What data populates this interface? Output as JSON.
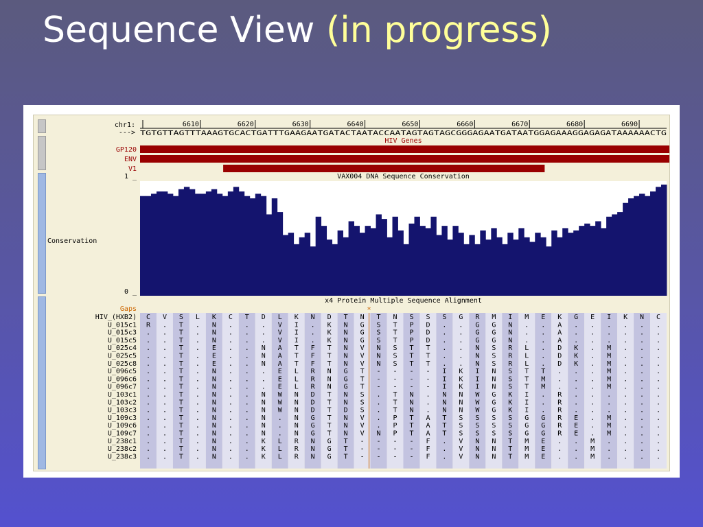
{
  "slide": {
    "title_main": "Sequence View",
    "title_accent": "(in progress)"
  },
  "colors": {
    "background_top": "#5b5a7e",
    "background_bottom": "#5451cf",
    "title_accent": "#ffff99",
    "browser_bg": "#f4f0da",
    "gene_track": "#990000",
    "conservation_fill": "#14146e",
    "gaps_label": "#cc6600",
    "alignment_even": "#c3c3e0",
    "alignment_odd": "#e2e2f0",
    "grid_line": "#d8d8ec"
  },
  "ruler": {
    "chrom_label": "chr1:",
    "strand_label": "--->",
    "positions": [
      "6610",
      "6620",
      "6630",
      "6640",
      "6650",
      "6660",
      "6670",
      "6680",
      "6690"
    ],
    "dna_sequence": "TGTGTTAGTTTAAAGTGCACTGATTTGAAGAATGATACTAATACCAATAGTAGTAGCGGGAGAATGATAATGGAGAAAGGAGAGATAAAAAACTG"
  },
  "gene_tracks": {
    "group_title": "HIV Genes",
    "tracks": [
      {
        "label": "GP120",
        "start_base": 0,
        "end_base": 95
      },
      {
        "label": "ENV",
        "start_base": 0,
        "end_base": 95
      },
      {
        "label": "V1",
        "start_base": 15,
        "end_base": 72
      }
    ]
  },
  "conservation": {
    "title": "VAX004 DNA Sequence Conservation",
    "side_label": "Conservation",
    "y_max_label": "1 _",
    "y_min_label": "0 _",
    "values": [
      0.87,
      0.87,
      0.89,
      0.91,
      0.91,
      0.89,
      0.87,
      0.93,
      0.95,
      0.93,
      0.89,
      0.89,
      0.91,
      0.93,
      0.89,
      0.87,
      0.91,
      0.95,
      0.91,
      0.87,
      0.85,
      0.89,
      0.87,
      0.71,
      0.85,
      0.73,
      0.53,
      0.55,
      0.45,
      0.51,
      0.55,
      0.43,
      0.69,
      0.61,
      0.49,
      0.45,
      0.57,
      0.51,
      0.65,
      0.61,
      0.55,
      0.61,
      0.59,
      0.71,
      0.67,
      0.51,
      0.69,
      0.57,
      0.45,
      0.63,
      0.69,
      0.61,
      0.59,
      0.69,
      0.53,
      0.61,
      0.49,
      0.61,
      0.55,
      0.45,
      0.53,
      0.45,
      0.57,
      0.49,
      0.59,
      0.51,
      0.45,
      0.55,
      0.49,
      0.59,
      0.51,
      0.47,
      0.55,
      0.51,
      0.43,
      0.57,
      0.51,
      0.59,
      0.55,
      0.57,
      0.61,
      0.63,
      0.61,
      0.65,
      0.59,
      0.69,
      0.71,
      0.73,
      0.81,
      0.85,
      0.87,
      0.89,
      0.87,
      0.91,
      0.95,
      0.97
    ]
  },
  "alignment": {
    "title": "x4 Protein Multiple Sequence Alignment",
    "gaps_label": "Gaps",
    "gap_marker": "*",
    "reference": {
      "name": "HIV_(HXB2)",
      "residues": [
        "C",
        "V",
        "S",
        "L",
        "K",
        "C",
        "T",
        "D",
        "L",
        "K",
        "N",
        "D",
        "T",
        "N",
        "T",
        "N",
        "S",
        "S",
        "S",
        "G",
        "R",
        "M",
        "I",
        "M",
        "E",
        "K",
        "G",
        "E",
        "I",
        "K",
        "N",
        "C"
      ]
    },
    "rows": [
      {
        "name": "U_015c1",
        "residues": [
          "R",
          ".",
          "T",
          ".",
          "N",
          ".",
          ".",
          ".",
          "V",
          "I",
          ".",
          "K",
          "N",
          "G",
          "S",
          "T",
          "P",
          "D",
          ".",
          ".",
          "G",
          "G",
          "N",
          ".",
          ".",
          "A",
          ".",
          ".",
          ".",
          ".",
          ".",
          "."
        ]
      },
      {
        "name": "U_015c3",
        "residues": [
          ".",
          ".",
          "T",
          ".",
          "N",
          ".",
          ".",
          ".",
          "V",
          "I",
          ".",
          "K",
          "N",
          "G",
          "S",
          "T",
          "P",
          "D",
          ".",
          ".",
          "G",
          "G",
          "N",
          ".",
          ".",
          "A",
          ".",
          ".",
          ".",
          ".",
          ".",
          "."
        ]
      },
      {
        "name": "U_015c5",
        "residues": [
          ".",
          ".",
          "T",
          ".",
          "N",
          ".",
          ".",
          ".",
          "V",
          "I",
          ".",
          "K",
          "N",
          "G",
          "S",
          "T",
          "P",
          "D",
          ".",
          ".",
          "G",
          "G",
          "N",
          ".",
          ".",
          "A",
          ".",
          ".",
          ".",
          ".",
          ".",
          "."
        ]
      },
      {
        "name": "U_025c4",
        "residues": [
          ".",
          ".",
          "T",
          ".",
          "E",
          ".",
          ".",
          "N",
          "A",
          "T",
          "F",
          "T",
          "N",
          "V",
          "N",
          "S",
          "T",
          "T",
          ".",
          ".",
          "N",
          "S",
          "R",
          "L",
          ".",
          "D",
          "K",
          ".",
          "M",
          ".",
          ".",
          "."
        ]
      },
      {
        "name": "U_025c5",
        "residues": [
          ".",
          ".",
          "T",
          ".",
          "E",
          ".",
          ".",
          "N",
          "A",
          "T",
          "F",
          "T",
          "N",
          "V",
          "N",
          "S",
          "T",
          "T",
          ".",
          ".",
          "N",
          "S",
          "R",
          "L",
          ".",
          "D",
          "K",
          ".",
          "M",
          ".",
          ".",
          "."
        ]
      },
      {
        "name": "U_025c8",
        "residues": [
          ".",
          ".",
          "T",
          ".",
          "E",
          ".",
          ".",
          "N",
          "A",
          "T",
          "F",
          "T",
          "N",
          "V",
          "N",
          "S",
          "T",
          "T",
          ".",
          ".",
          "N",
          "S",
          "R",
          "L",
          ".",
          "D",
          "K",
          ".",
          "M",
          ".",
          ".",
          "."
        ]
      },
      {
        "name": "U_096c5",
        "residues": [
          ".",
          ".",
          "T",
          ".",
          "N",
          ".",
          ".",
          ".",
          "E",
          "L",
          "R",
          "N",
          "G",
          "T",
          "-",
          "-",
          "-",
          "-",
          "I",
          "K",
          "I",
          "N",
          "S",
          "T",
          "T",
          ".",
          ".",
          ".",
          "M",
          ".",
          ".",
          "."
        ]
      },
      {
        "name": "U_096c6",
        "residues": [
          ".",
          ".",
          "T",
          ".",
          "N",
          ".",
          ".",
          ".",
          "E",
          "L",
          "R",
          "N",
          "G",
          "T",
          "-",
          "-",
          "-",
          "-",
          "I",
          "K",
          "I",
          "N",
          "S",
          "T",
          "M",
          ".",
          ".",
          ".",
          "M",
          ".",
          ".",
          "."
        ]
      },
      {
        "name": "U_096c7",
        "residues": [
          ".",
          ".",
          "T",
          ".",
          "N",
          ".",
          ".",
          ".",
          "E",
          "L",
          "R",
          "N",
          "G",
          "T",
          "-",
          "-",
          "-",
          "-",
          "I",
          "K",
          "I",
          "N",
          "S",
          "T",
          "M",
          ".",
          ".",
          ".",
          "M",
          ".",
          ".",
          "."
        ]
      },
      {
        "name": "U_103c1",
        "residues": [
          ".",
          ".",
          "T",
          ".",
          "N",
          ".",
          ".",
          "N",
          "W",
          "N",
          "D",
          "T",
          "N",
          "S",
          ".",
          "T",
          "N",
          ".",
          "N",
          "N",
          "W",
          "G",
          "K",
          "I",
          ".",
          "R",
          ".",
          ".",
          ".",
          ".",
          ".",
          "."
        ]
      },
      {
        "name": "U_103c2",
        "residues": [
          ".",
          ".",
          "T",
          ".",
          "N",
          ".",
          ".",
          "N",
          "W",
          "N",
          "D",
          "T",
          "N",
          "S",
          ".",
          "T",
          "N",
          ".",
          "N",
          "N",
          "W",
          "G",
          "K",
          "I",
          ".",
          "R",
          ".",
          ".",
          ".",
          ".",
          ".",
          "."
        ]
      },
      {
        "name": "U_103c3",
        "residues": [
          ".",
          ".",
          "T",
          ".",
          "N",
          ".",
          ".",
          "N",
          "W",
          "N",
          "D",
          "T",
          "D",
          "S",
          ".",
          "T",
          "N",
          ".",
          "N",
          "N",
          "W",
          "G",
          "K",
          "I",
          ".",
          "R",
          ".",
          ".",
          ".",
          ".",
          ".",
          "."
        ]
      },
      {
        "name": "U_109c3",
        "residues": [
          ".",
          ".",
          "T",
          ".",
          "N",
          ".",
          ".",
          "N",
          ".",
          "N",
          "G",
          "T",
          "N",
          "V",
          ".",
          "P",
          "T",
          "A",
          "T",
          "S",
          "S",
          "S",
          "S",
          "G",
          "G",
          "R",
          "E",
          ".",
          "M",
          ".",
          ".",
          "."
        ]
      },
      {
        "name": "U_109c6",
        "residues": [
          ".",
          ".",
          "T",
          ".",
          "N",
          ".",
          ".",
          "N",
          ".",
          "N",
          "G",
          "T",
          "N",
          "V",
          ".",
          "P",
          "T",
          "A",
          "T",
          "S",
          "S",
          "S",
          "S",
          "G",
          "G",
          "R",
          "E",
          ".",
          "M",
          ".",
          ".",
          "."
        ]
      },
      {
        "name": "U_109c7",
        "residues": [
          ".",
          ".",
          "T",
          ".",
          "N",
          ".",
          ".",
          "N",
          ".",
          "N",
          "G",
          "T",
          "N",
          "V",
          "N",
          "P",
          "T",
          "A",
          "T",
          "S",
          "S",
          "S",
          "S",
          "G",
          "G",
          "R",
          "E",
          ".",
          "M",
          ".",
          ".",
          "."
        ]
      },
      {
        "name": "U_238c1",
        "residues": [
          ".",
          ".",
          "T",
          ".",
          "N",
          ".",
          ".",
          "K",
          "L",
          "R",
          "N",
          "G",
          "T",
          "-",
          "-",
          "-",
          "-",
          "F",
          ".",
          "V",
          "N",
          "N",
          "T",
          "M",
          "E",
          ".",
          ".",
          "M",
          ".",
          ".",
          ".",
          "."
        ]
      },
      {
        "name": "U_238c2",
        "residues": [
          ".",
          ".",
          "T",
          ".",
          "N",
          ".",
          ".",
          "K",
          "L",
          "R",
          "N",
          "G",
          "T",
          "-",
          "-",
          "-",
          "-",
          "F",
          ".",
          "V",
          "N",
          "N",
          "T",
          "M",
          "E",
          ".",
          ".",
          "M",
          ".",
          ".",
          ".",
          "."
        ]
      },
      {
        "name": "U_238c3",
        "residues": [
          ".",
          ".",
          "T",
          ".",
          "N",
          ".",
          ".",
          "K",
          "L",
          "R",
          "N",
          "G",
          "T",
          "-",
          "-",
          "-",
          "-",
          "F",
          ".",
          "V",
          "N",
          "N",
          "T",
          "M",
          "E",
          ".",
          ".",
          "M",
          ".",
          ".",
          ".",
          "."
        ]
      }
    ]
  }
}
